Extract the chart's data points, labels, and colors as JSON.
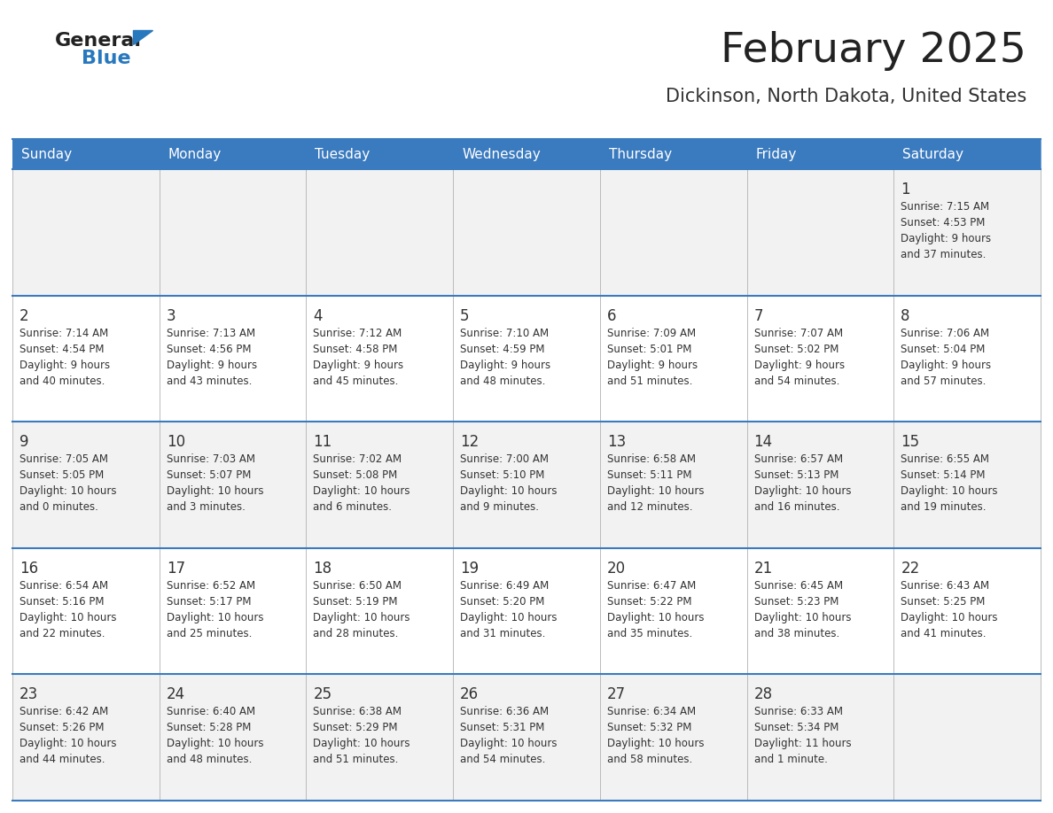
{
  "title": "February 2025",
  "subtitle": "Dickinson, North Dakota, United States",
  "days_of_week": [
    "Sunday",
    "Monday",
    "Tuesday",
    "Wednesday",
    "Thursday",
    "Friday",
    "Saturday"
  ],
  "header_bg": "#3a7abf",
  "header_text": "#ffffff",
  "cell_bg_even": "#f2f2f2",
  "cell_bg_odd": "#ffffff",
  "cell_border_color": "#3a7abf",
  "day_num_color": "#333333",
  "info_text_color": "#333333",
  "title_color": "#222222",
  "subtitle_color": "#333333",
  "logo_general_color": "#222222",
  "logo_blue_color": "#2878be",
  "weeks": [
    [
      {
        "day": null,
        "sunrise": null,
        "sunset": null,
        "daylight": null
      },
      {
        "day": null,
        "sunrise": null,
        "sunset": null,
        "daylight": null
      },
      {
        "day": null,
        "sunrise": null,
        "sunset": null,
        "daylight": null
      },
      {
        "day": null,
        "sunrise": null,
        "sunset": null,
        "daylight": null
      },
      {
        "day": null,
        "sunrise": null,
        "sunset": null,
        "daylight": null
      },
      {
        "day": null,
        "sunrise": null,
        "sunset": null,
        "daylight": null
      },
      {
        "day": 1,
        "sunrise": "7:15 AM",
        "sunset": "4:53 PM",
        "daylight": "9 hours\nand 37 minutes."
      }
    ],
    [
      {
        "day": 2,
        "sunrise": "7:14 AM",
        "sunset": "4:54 PM",
        "daylight": "9 hours\nand 40 minutes."
      },
      {
        "day": 3,
        "sunrise": "7:13 AM",
        "sunset": "4:56 PM",
        "daylight": "9 hours\nand 43 minutes."
      },
      {
        "day": 4,
        "sunrise": "7:12 AM",
        "sunset": "4:58 PM",
        "daylight": "9 hours\nand 45 minutes."
      },
      {
        "day": 5,
        "sunrise": "7:10 AM",
        "sunset": "4:59 PM",
        "daylight": "9 hours\nand 48 minutes."
      },
      {
        "day": 6,
        "sunrise": "7:09 AM",
        "sunset": "5:01 PM",
        "daylight": "9 hours\nand 51 minutes."
      },
      {
        "day": 7,
        "sunrise": "7:07 AM",
        "sunset": "5:02 PM",
        "daylight": "9 hours\nand 54 minutes."
      },
      {
        "day": 8,
        "sunrise": "7:06 AM",
        "sunset": "5:04 PM",
        "daylight": "9 hours\nand 57 minutes."
      }
    ],
    [
      {
        "day": 9,
        "sunrise": "7:05 AM",
        "sunset": "5:05 PM",
        "daylight": "10 hours\nand 0 minutes."
      },
      {
        "day": 10,
        "sunrise": "7:03 AM",
        "sunset": "5:07 PM",
        "daylight": "10 hours\nand 3 minutes."
      },
      {
        "day": 11,
        "sunrise": "7:02 AM",
        "sunset": "5:08 PM",
        "daylight": "10 hours\nand 6 minutes."
      },
      {
        "day": 12,
        "sunrise": "7:00 AM",
        "sunset": "5:10 PM",
        "daylight": "10 hours\nand 9 minutes."
      },
      {
        "day": 13,
        "sunrise": "6:58 AM",
        "sunset": "5:11 PM",
        "daylight": "10 hours\nand 12 minutes."
      },
      {
        "day": 14,
        "sunrise": "6:57 AM",
        "sunset": "5:13 PM",
        "daylight": "10 hours\nand 16 minutes."
      },
      {
        "day": 15,
        "sunrise": "6:55 AM",
        "sunset": "5:14 PM",
        "daylight": "10 hours\nand 19 minutes."
      }
    ],
    [
      {
        "day": 16,
        "sunrise": "6:54 AM",
        "sunset": "5:16 PM",
        "daylight": "10 hours\nand 22 minutes."
      },
      {
        "day": 17,
        "sunrise": "6:52 AM",
        "sunset": "5:17 PM",
        "daylight": "10 hours\nand 25 minutes."
      },
      {
        "day": 18,
        "sunrise": "6:50 AM",
        "sunset": "5:19 PM",
        "daylight": "10 hours\nand 28 minutes."
      },
      {
        "day": 19,
        "sunrise": "6:49 AM",
        "sunset": "5:20 PM",
        "daylight": "10 hours\nand 31 minutes."
      },
      {
        "day": 20,
        "sunrise": "6:47 AM",
        "sunset": "5:22 PM",
        "daylight": "10 hours\nand 35 minutes."
      },
      {
        "day": 21,
        "sunrise": "6:45 AM",
        "sunset": "5:23 PM",
        "daylight": "10 hours\nand 38 minutes."
      },
      {
        "day": 22,
        "sunrise": "6:43 AM",
        "sunset": "5:25 PM",
        "daylight": "10 hours\nand 41 minutes."
      }
    ],
    [
      {
        "day": 23,
        "sunrise": "6:42 AM",
        "sunset": "5:26 PM",
        "daylight": "10 hours\nand 44 minutes."
      },
      {
        "day": 24,
        "sunrise": "6:40 AM",
        "sunset": "5:28 PM",
        "daylight": "10 hours\nand 48 minutes."
      },
      {
        "day": 25,
        "sunrise": "6:38 AM",
        "sunset": "5:29 PM",
        "daylight": "10 hours\nand 51 minutes."
      },
      {
        "day": 26,
        "sunrise": "6:36 AM",
        "sunset": "5:31 PM",
        "daylight": "10 hours\nand 54 minutes."
      },
      {
        "day": 27,
        "sunrise": "6:34 AM",
        "sunset": "5:32 PM",
        "daylight": "10 hours\nand 58 minutes."
      },
      {
        "day": 28,
        "sunrise": "6:33 AM",
        "sunset": "5:34 PM",
        "daylight": "11 hours\nand 1 minute."
      },
      {
        "day": null,
        "sunrise": null,
        "sunset": null,
        "daylight": null
      }
    ]
  ]
}
